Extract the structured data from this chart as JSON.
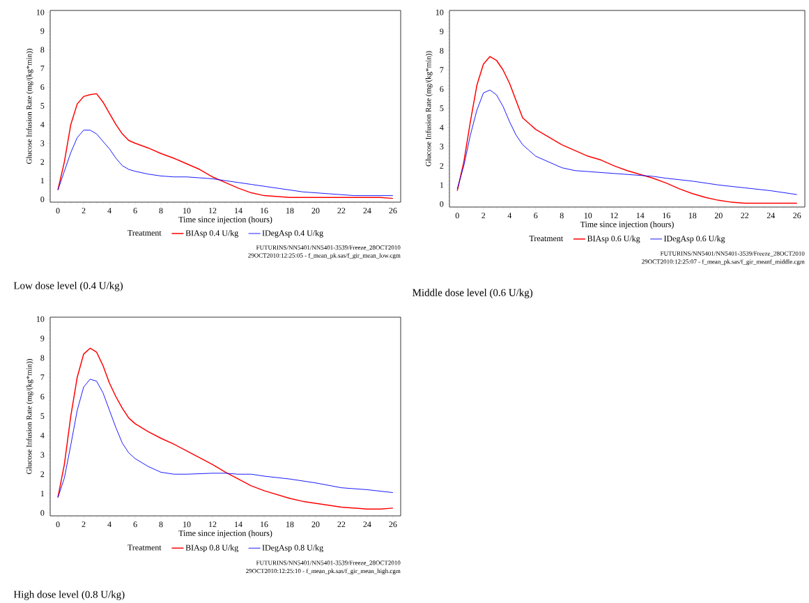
{
  "chart_data": [
    {
      "type": "line",
      "title": "Low dose level (0.4 U/kg)",
      "xlabel": "Time since injection (hours)",
      "ylabel": "Glucose Infusion Rate (mg/(kg*min))",
      "legend_title": "Treatment",
      "legend": "bottom",
      "xlim": [
        -0.6,
        26.6
      ],
      "ylim": [
        -0.15,
        10.1
      ],
      "xticks": [
        0,
        2,
        4,
        6,
        8,
        10,
        12,
        14,
        16,
        18,
        20,
        22,
        24,
        26
      ],
      "yticks": [
        0,
        1,
        2,
        3,
        4,
        5,
        6,
        7,
        8,
        9,
        10
      ],
      "series": [
        {
          "name": "BIAsp 0.4 U/kg",
          "color": "#ff0000",
          "x": [
            0,
            0.5,
            1,
            1.5,
            2,
            2.5,
            3,
            3.5,
            4,
            4.5,
            5,
            5.5,
            6,
            7,
            8,
            9,
            10,
            11,
            12,
            13,
            14,
            15,
            16,
            17,
            18,
            19,
            20,
            22,
            24,
            25,
            26
          ],
          "values": [
            0.5,
            2,
            4,
            5.1,
            5.5,
            5.6,
            5.65,
            5.2,
            4.6,
            4,
            3.5,
            3.15,
            3,
            2.75,
            2.45,
            2.2,
            1.9,
            1.6,
            1.2,
            0.9,
            0.6,
            0.35,
            0.2,
            0.15,
            0.1,
            0.1,
            0.1,
            0.1,
            0.1,
            0.1,
            0.05
          ]
        },
        {
          "name": "IDegAsp 0.4 U/kg",
          "color": "#0000ff",
          "x": [
            0,
            0.5,
            1,
            1.5,
            2,
            2.5,
            3,
            3.5,
            4,
            4.5,
            5,
            5.5,
            6,
            7,
            8,
            9,
            10,
            11,
            12,
            13,
            14,
            15,
            16,
            17,
            18,
            19,
            20,
            21,
            22,
            23,
            24,
            26
          ],
          "values": [
            0.5,
            1.5,
            2.5,
            3.3,
            3.7,
            3.7,
            3.5,
            3.1,
            2.7,
            2.2,
            1.8,
            1.6,
            1.5,
            1.35,
            1.25,
            1.2,
            1.2,
            1.15,
            1.1,
            1,
            0.9,
            0.8,
            0.7,
            0.6,
            0.5,
            0.4,
            0.35,
            0.3,
            0.25,
            0.2,
            0.2,
            0.2
          ]
        }
      ],
      "annotations": [
        "FUTURINS/NN5401/NN5401-3539/Freeze_28OCT2010",
        "29OCT2010:12:25:05 - f_mean_pk.sas/f_gir_mean_low.cgm"
      ]
    },
    {
      "type": "line",
      "title": "Middle dose level (0.6 U/kg)",
      "xlabel": "Time since injection (hours)",
      "ylabel": "Glucose Infusion Rate (mg/(kg*min))",
      "legend_title": "Treatment",
      "legend": "bottom",
      "xlim": [
        -0.6,
        26.6
      ],
      "ylim": [
        -0.15,
        10.1
      ],
      "xticks": [
        0,
        2,
        4,
        6,
        8,
        10,
        12,
        14,
        16,
        18,
        20,
        22,
        24,
        26
      ],
      "yticks": [
        0,
        1,
        2,
        3,
        4,
        5,
        6,
        7,
        8,
        9,
        10
      ],
      "series": [
        {
          "name": "BIAsp 0.6 U/kg",
          "color": "#ff0000",
          "x": [
            0,
            0.5,
            1,
            1.5,
            2,
            2.5,
            3,
            3.5,
            4,
            4.5,
            5,
            5.5,
            6,
            7,
            8,
            9,
            10,
            11,
            12,
            13,
            14,
            15,
            16,
            17,
            18,
            19,
            20,
            21,
            22,
            24,
            26
          ],
          "values": [
            0.7,
            2.2,
            4.3,
            6.2,
            7.3,
            7.7,
            7.5,
            7,
            6.3,
            5.4,
            4.5,
            4.2,
            3.9,
            3.5,
            3.1,
            2.8,
            2.5,
            2.3,
            2,
            1.75,
            1.55,
            1.35,
            1.1,
            0.8,
            0.55,
            0.35,
            0.2,
            0.1,
            0.05,
            0.05,
            0.05
          ]
        },
        {
          "name": "IDegAsp 0.6 U/kg",
          "color": "#0000ff",
          "x": [
            0,
            0.5,
            1,
            1.5,
            2,
            2.5,
            3,
            3.5,
            4,
            4.5,
            5,
            5.5,
            6,
            7,
            8,
            9,
            10,
            12,
            14,
            15,
            16,
            18,
            20,
            22,
            24,
            26
          ],
          "values": [
            0.8,
            2,
            3.6,
            4.9,
            5.8,
            5.95,
            5.7,
            5.1,
            4.3,
            3.6,
            3.1,
            2.8,
            2.5,
            2.2,
            1.9,
            1.75,
            1.7,
            1.6,
            1.5,
            1.45,
            1.35,
            1.2,
            1,
            0.85,
            0.7,
            0.5
          ]
        }
      ],
      "annotations": [
        "FUTURINS/NN5401/NN5401-3539/Freeze_28OCT2010",
        "29OCT2010:12:25:07 - f_mean_pk.sas/f_gir_meanf_middle.cgm"
      ]
    },
    {
      "type": "line",
      "title": "High dose level (0.8 U/kg)",
      "xlabel": "Time since injection (hours)",
      "ylabel": "Glucose Infusion Rate (mg/(kg*min))",
      "legend_title": "Treatment",
      "legend": "bottom",
      "xlim": [
        -0.6,
        26.6
      ],
      "ylim": [
        -0.15,
        10.1
      ],
      "xticks": [
        0,
        2,
        4,
        6,
        8,
        10,
        12,
        14,
        16,
        18,
        20,
        22,
        24,
        26
      ],
      "yticks": [
        0,
        1,
        2,
        3,
        4,
        5,
        6,
        7,
        8,
        9,
        10
      ],
      "series": [
        {
          "name": "BIAsp 0.8 U/kg",
          "color": "#ff0000",
          "x": [
            0,
            0.5,
            1,
            1.5,
            2,
            2.5,
            3,
            3.5,
            4,
            4.5,
            5,
            5.5,
            6,
            7,
            8,
            9,
            10,
            11,
            12,
            13,
            14,
            15,
            16,
            17,
            18,
            19,
            20,
            21,
            22,
            23,
            24,
            25,
            26
          ],
          "values": [
            0.8,
            2.5,
            5,
            7,
            8.2,
            8.5,
            8.3,
            7.6,
            6.7,
            6,
            5.4,
            4.9,
            4.6,
            4.2,
            3.85,
            3.55,
            3.2,
            2.85,
            2.5,
            2.1,
            1.75,
            1.4,
            1.15,
            0.95,
            0.75,
            0.6,
            0.5,
            0.4,
            0.3,
            0.25,
            0.2,
            0.2,
            0.25
          ]
        },
        {
          "name": "IDegAsp 0.8 U/kg",
          "color": "#0000ff",
          "x": [
            0,
            0.5,
            1,
            1.5,
            2,
            2.5,
            3,
            3.5,
            4,
            4.5,
            5,
            5.5,
            6,
            7,
            8,
            9,
            10,
            12,
            13,
            14,
            15,
            16,
            18,
            20,
            22,
            24,
            26
          ],
          "values": [
            0.8,
            1.8,
            3.5,
            5.3,
            6.5,
            6.9,
            6.8,
            6.2,
            5.3,
            4.4,
            3.6,
            3.1,
            2.8,
            2.4,
            2.1,
            2,
            2,
            2.05,
            2.05,
            2,
            2,
            1.9,
            1.75,
            1.55,
            1.3,
            1.2,
            1.05
          ]
        }
      ],
      "annotations": [
        "FUTURINS/NN5401/NN5401-3539/Freeze_28OCT2010",
        "29OCT2010:12:25:10 - f_mean_pk.sas/f_gir_mean_high.cgm"
      ]
    }
  ]
}
